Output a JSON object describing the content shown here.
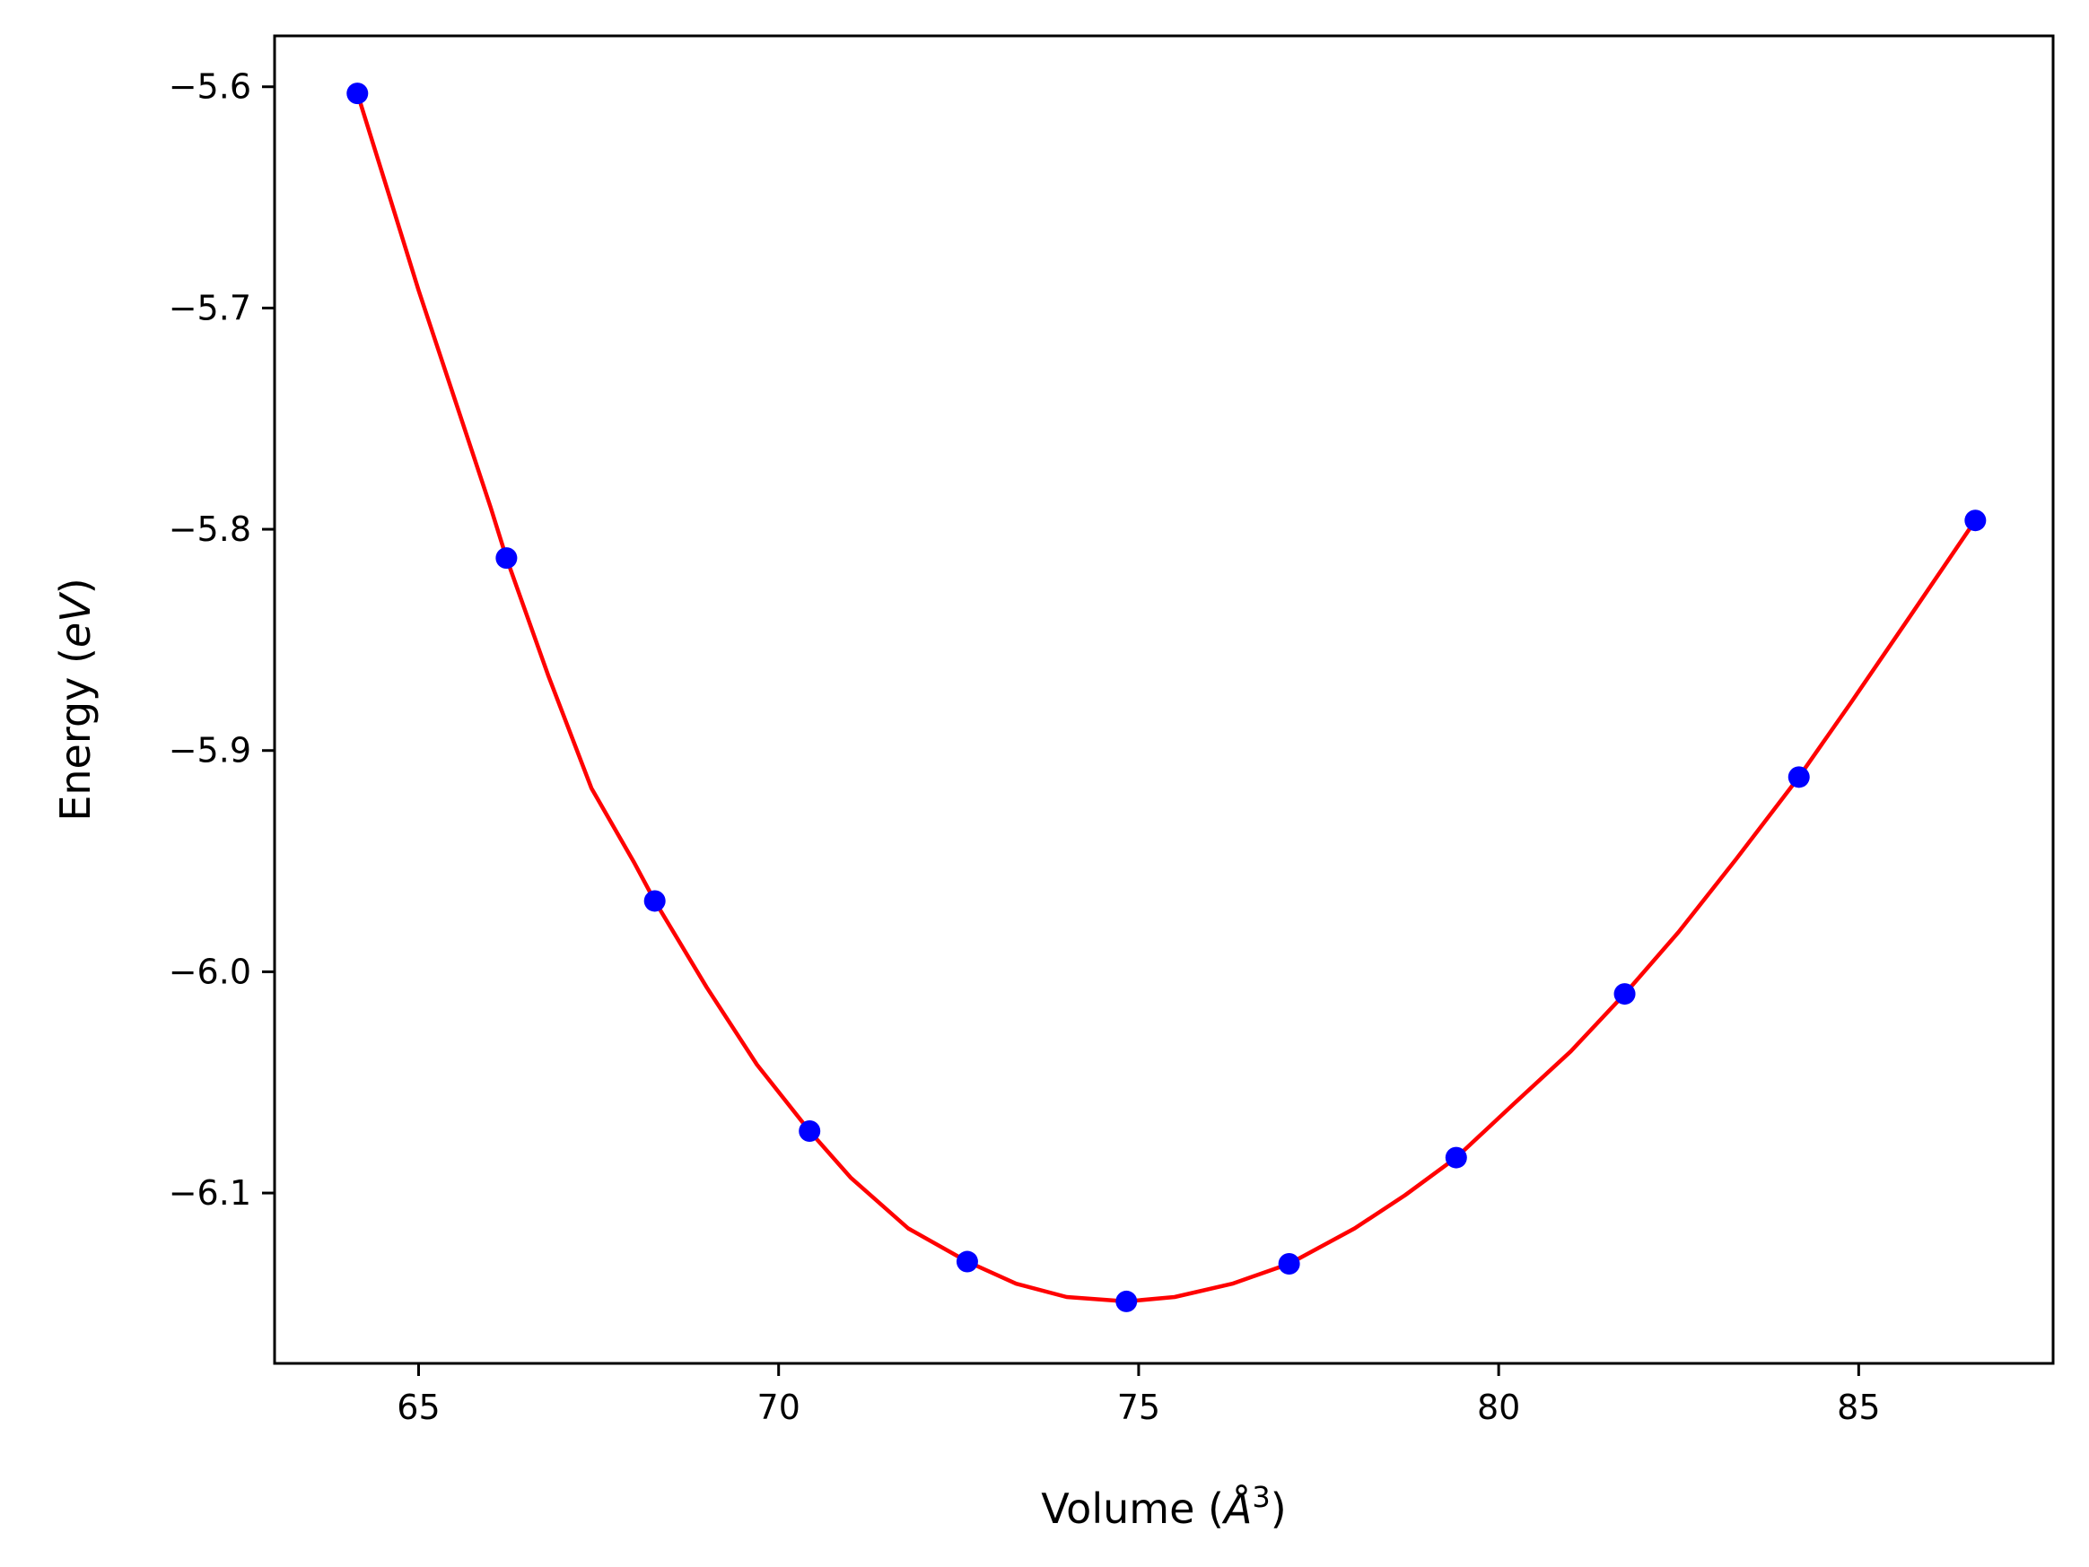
{
  "chart_data": {
    "type": "scatter",
    "xlabel_prefix": "Volume (",
    "xlabel_unit": "Å",
    "xlabel_exp": "3",
    "xlabel_suffix": ")",
    "ylabel_prefix": "Energy (",
    "ylabel_unit": "eV",
    "ylabel_suffix": ")",
    "xlim": [
      63.0,
      87.7
    ],
    "ylim": [
      -6.177,
      -5.577
    ],
    "xticks": [
      65,
      70,
      75,
      80,
      85
    ],
    "yticks": [
      -5.6,
      -5.7,
      -5.8,
      -5.9,
      -6.0,
      -6.1
    ],
    "xtick_labels": [
      "65",
      "70",
      "75",
      "80",
      "85"
    ],
    "ytick_labels": [
      "−5.6",
      "−5.7",
      "−5.8",
      "−5.9",
      "−6.0",
      "−6.1"
    ],
    "grid": false,
    "series": [
      {
        "kind": "points",
        "color": "#0000ff",
        "x": [
          64.15,
          66.22,
          68.28,
          70.43,
          72.62,
          74.83,
          77.09,
          79.41,
          81.75,
          84.17,
          86.62
        ],
        "y": [
          -5.603,
          -5.813,
          -5.968,
          -6.072,
          -6.131,
          -6.149,
          -6.132,
          -6.084,
          -6.01,
          -5.912,
          -5.796
        ]
      },
      {
        "kind": "fit",
        "color": "#ff0000",
        "x": [
          64.15,
          64.6,
          65.0,
          65.5,
          66.0,
          66.22,
          66.8,
          67.4,
          68.0,
          68.28,
          69.0,
          69.7,
          70.43,
          71.0,
          71.8,
          72.62,
          73.3,
          74.0,
          74.83,
          75.5,
          76.3,
          77.09,
          78.0,
          78.7,
          79.41,
          80.2,
          81.0,
          81.75,
          82.5,
          83.3,
          84.17,
          84.9,
          85.7,
          86.62
        ],
        "y": [
          -5.603,
          -5.65,
          -5.692,
          -5.741,
          -5.79,
          -5.813,
          -5.866,
          -5.917,
          -5.951,
          -5.968,
          -6.007,
          -6.042,
          -6.072,
          -6.093,
          -6.116,
          -6.131,
          -6.141,
          -6.147,
          -6.149,
          -6.147,
          -6.141,
          -6.132,
          -6.116,
          -6.101,
          -6.084,
          -6.06,
          -6.036,
          -6.01,
          -5.982,
          -5.949,
          -5.912,
          -5.878,
          -5.84,
          -5.796
        ]
      }
    ]
  }
}
